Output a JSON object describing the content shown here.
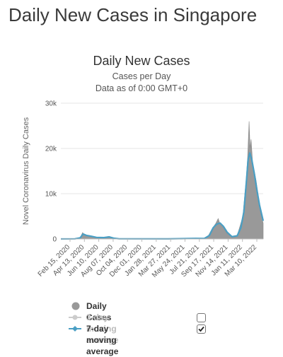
{
  "heading": "Daily New Cases in Singapore",
  "chart_data": {
    "type": "bar",
    "title": "Daily New Cases",
    "subtitle_lines": [
      "Cases per Day",
      "Data as of 0:00 GMT+0"
    ],
    "ylabel": "Novel Coronavirus Daily Cases",
    "ylim": [
      0,
      30000
    ],
    "yticks": [
      0,
      10000,
      20000,
      30000
    ],
    "ytick_labels": [
      "0",
      "10k",
      "20k",
      "30k"
    ],
    "xlim": [
      "2020-01-23",
      "2022-04-20"
    ],
    "xtick_labels": [
      "Feb 15, 2020",
      "Apr 13, 2020",
      "Jun 10, 2020",
      "Aug 07, 2020",
      "Oct 04, 2020",
      "Dec 01, 2020",
      "Jan 28, 2021",
      "Mar 27, 2021",
      "May 24, 2021",
      "Jul 21, 2021",
      "Sep 17, 2021",
      "Nov 14, 2021",
      "Jan 11, 2022",
      "Mar 10, 2022"
    ],
    "series": [
      {
        "name": "Daily Cases",
        "color": "#999999",
        "points": [
          [
            "2020-01-23",
            0
          ],
          [
            "2020-03-20",
            40
          ],
          [
            "2020-04-10",
            300
          ],
          [
            "2020-04-20",
            1400
          ],
          [
            "2020-04-26",
            900
          ],
          [
            "2020-05-15",
            650
          ],
          [
            "2020-06-10",
            350
          ],
          [
            "2020-07-10",
            300
          ],
          [
            "2020-08-01",
            550
          ],
          [
            "2020-08-20",
            150
          ],
          [
            "2020-09-10",
            40
          ],
          [
            "2021-04-01",
            20
          ],
          [
            "2021-07-20",
            150
          ],
          [
            "2021-08-20",
            100
          ],
          [
            "2021-09-10",
            700
          ],
          [
            "2021-09-25",
            2200
          ],
          [
            "2021-10-10",
            3400
          ],
          [
            "2021-10-20",
            4500
          ],
          [
            "2021-10-28",
            3200
          ],
          [
            "2021-11-10",
            2500
          ],
          [
            "2021-11-25",
            1200
          ],
          [
            "2021-12-15",
            400
          ],
          [
            "2022-01-05",
            800
          ],
          [
            "2022-01-20",
            3500
          ],
          [
            "2022-01-28",
            5000
          ],
          [
            "2022-02-05",
            10000
          ],
          [
            "2022-02-10",
            13000
          ],
          [
            "2022-02-16",
            18000
          ],
          [
            "2022-02-22",
            26000
          ],
          [
            "2022-02-26",
            20000
          ],
          [
            "2022-03-02",
            22000
          ],
          [
            "2022-03-08",
            17000
          ],
          [
            "2022-03-15",
            15000
          ],
          [
            "2022-03-22",
            13000
          ],
          [
            "2022-03-30",
            10000
          ],
          [
            "2022-04-06",
            7000
          ],
          [
            "2022-04-13",
            5000
          ],
          [
            "2022-04-20",
            3500
          ]
        ]
      },
      {
        "name": "3-day moving average",
        "color": "#bbbbbb",
        "visible": false
      },
      {
        "name": "7-day moving average",
        "color": "#4a9fc4",
        "visible": true,
        "points": [
          [
            "2020-01-23",
            0
          ],
          [
            "2020-03-20",
            30
          ],
          [
            "2020-04-10",
            250
          ],
          [
            "2020-04-22",
            1100
          ],
          [
            "2020-05-05",
            800
          ],
          [
            "2020-05-25",
            600
          ],
          [
            "2020-06-15",
            350
          ],
          [
            "2020-07-15",
            300
          ],
          [
            "2020-08-05",
            450
          ],
          [
            "2020-08-25",
            150
          ],
          [
            "2020-09-15",
            30
          ],
          [
            "2021-04-01",
            20
          ],
          [
            "2021-07-20",
            120
          ],
          [
            "2021-08-25",
            100
          ],
          [
            "2021-09-15",
            800
          ],
          [
            "2021-09-30",
            2500
          ],
          [
            "2021-10-15",
            3300
          ],
          [
            "2021-10-28",
            3500
          ],
          [
            "2021-11-10",
            2800
          ],
          [
            "2021-11-25",
            1500
          ],
          [
            "2021-12-15",
            500
          ],
          [
            "2022-01-05",
            700
          ],
          [
            "2022-01-20",
            2500
          ],
          [
            "2022-02-01",
            6000
          ],
          [
            "2022-02-10",
            12000
          ],
          [
            "2022-02-18",
            17500
          ],
          [
            "2022-02-25",
            19000
          ],
          [
            "2022-03-05",
            17500
          ],
          [
            "2022-03-15",
            14500
          ],
          [
            "2022-03-25",
            11000
          ],
          [
            "2022-04-05",
            7500
          ],
          [
            "2022-04-20",
            4000
          ]
        ]
      }
    ],
    "legend": [
      {
        "label": "Daily Cases",
        "checkbox": false
      },
      {
        "label": "3-day moving average",
        "checkbox": true,
        "checked": false
      },
      {
        "label": "7-day moving average",
        "checkbox": true,
        "checked": true
      }
    ]
  }
}
